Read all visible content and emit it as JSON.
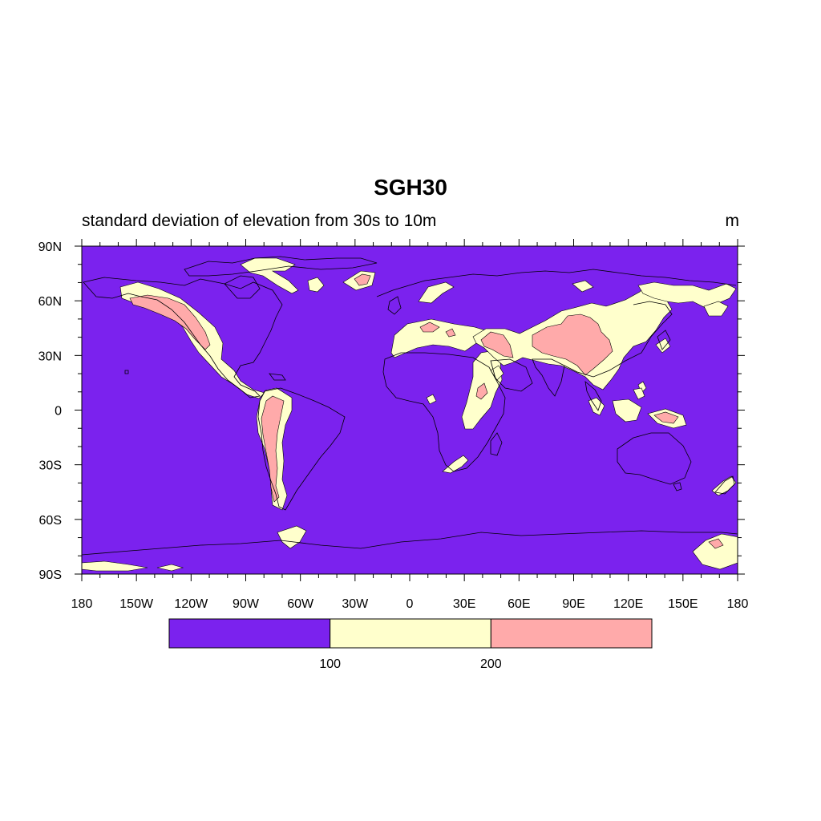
{
  "title": "SGH30",
  "subtitle": "standard deviation of elevation from 30s to 10m",
  "units": "m",
  "colors": {
    "background_field": "#7b22ee",
    "level_100_200": "#ffffcc",
    "level_above_200": "#ffaaaa",
    "coastline": "#000000"
  },
  "map": {
    "projection": "cylindrical-equidistant",
    "lon_range": [
      -180,
      180
    ],
    "lat_range": [
      -90,
      90
    ],
    "lon_tick_labels": [
      "180",
      "150W",
      "120W",
      "90W",
      "60W",
      "30W",
      "0",
      "30E",
      "60E",
      "90E",
      "120E",
      "150E",
      "180"
    ],
    "lat_tick_labels": [
      "90N",
      "60N",
      "30N",
      "0",
      "30S",
      "60S",
      "90S"
    ]
  },
  "colorbar": {
    "levels": [
      "100",
      "200"
    ],
    "colors": [
      "#7b22ee",
      "#ffffcc",
      "#ffaaaa"
    ]
  }
}
